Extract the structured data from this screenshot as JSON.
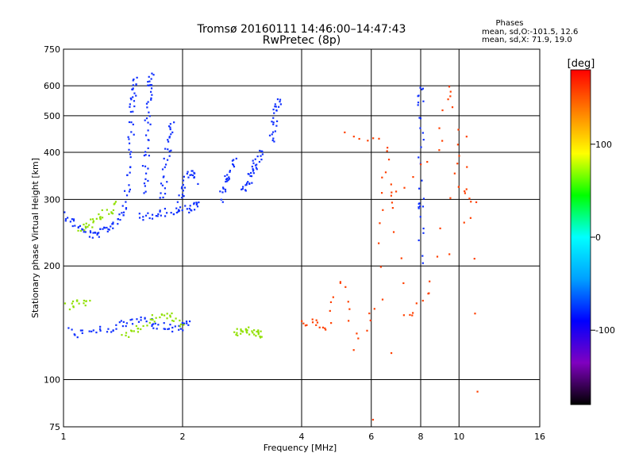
{
  "header": {
    "title_line1": "Tromsø 20160111 14:46:00–14:47:43",
    "title_line2": "RwPretec (8p)"
  },
  "stats": {
    "heading": "Phases",
    "line1": "mean, sd,O:-101.5, 12.6",
    "line2": "mean, sd,X:  71.9, 19.0"
  },
  "chart_data": {
    "type": "scatter",
    "xlabel": "Frequency [MHz]",
    "ylabel": "Stationary phase Virtual Height [km]",
    "xscale": "log",
    "yscale": "log",
    "xlim": [
      1,
      16
    ],
    "ylim": [
      75,
      750
    ],
    "xticks": [
      1,
      2,
      4,
      6,
      8,
      10,
      16
    ],
    "xtick_labels": [
      "1",
      "2",
      "4",
      "6",
      "8",
      "10",
      "16"
    ],
    "yticks": [
      75,
      100,
      200,
      300,
      400,
      500,
      600,
      750
    ],
    "ytick_labels": [
      "75",
      "100",
      "200",
      "300",
      "400",
      "500",
      "600",
      "750"
    ],
    "grid": true,
    "grid_x": [
      1,
      2,
      4,
      6,
      8,
      10,
      16
    ],
    "grid_y": [
      100,
      200,
      300,
      400,
      500,
      600
    ],
    "colorbar": {
      "label": "[deg]",
      "min": -180,
      "max": 180,
      "ticks": [
        100,
        0,
        -100
      ],
      "tick_labels": [
        "100",
        "0",
        "-100"
      ],
      "colors": [
        "#000000",
        "#8000c0",
        "#0000ff",
        "#00a0ff",
        "#00ffff",
        "#00ff00",
        "#ffff00",
        "#ff8000",
        "#ff0000"
      ]
    },
    "series": [
      {
        "color_class": "O-mode (blue, ~-100 deg)",
        "color": "#1030ff",
        "traces": [
          {
            "x": [
              1.0,
              1.05,
              1.1,
              1.15,
              1.2,
              1.25,
              1.3,
              1.35,
              1.4,
              1.45
            ],
            "y": [
              275,
              262,
              252,
              245,
              240,
              246,
              252,
              260,
              275,
              290
            ]
          },
          {
            "x": [
              1.45,
              1.46,
              1.47,
              1.48,
              1.49,
              1.5,
              1.51,
              1.52
            ],
            "y": [
              300,
              340,
              390,
              450,
              510,
              560,
              600,
              620
            ]
          },
          {
            "x": [
              1.6,
              1.61,
              1.62,
              1.63,
              1.64,
              1.65,
              1.66,
              1.67
            ],
            "y": [
              310,
              350,
              400,
              460,
              520,
              570,
              610,
              640
            ]
          },
          {
            "x": [
              1.55,
              1.65,
              1.75,
              1.85,
              1.95,
              2.05,
              2.15,
              2.2
            ],
            "y": [
              270,
              272,
              275,
              278,
              280,
              283,
              287,
              290
            ]
          },
          {
            "x": [
              1.78,
              1.8,
              1.82,
              1.84,
              1.86,
              1.88
            ],
            "y": [
              300,
              330,
              370,
              410,
              450,
              480
            ]
          },
          {
            "x": [
              1.95,
              2.0,
              2.05,
              2.1,
              2.15
            ],
            "y": [
              300,
              320,
              340,
              360,
              330
            ]
          },
          {
            "x": [
              2.5,
              2.55,
              2.6,
              2.65,
              2.7
            ],
            "y": [
              300,
              320,
              340,
              360,
              380
            ]
          },
          {
            "x": [
              2.85,
              2.9,
              2.95,
              3.0,
              3.05,
              3.1,
              3.15
            ],
            "y": [
              320,
              330,
              340,
              355,
              370,
              390,
              400
            ]
          },
          {
            "x": [
              3.35,
              3.38,
              3.42,
              3.46,
              3.5
            ],
            "y": [
              430,
              460,
              500,
              530,
              550
            ]
          },
          {
            "x": [
              1.0,
              1.1,
              1.2,
              1.3,
              1.4,
              1.5,
              1.6,
              1.7,
              1.8,
              1.9,
              2.0,
              2.1
            ],
            "y": [
              135,
              132,
              134,
              136,
              140,
              142,
              145,
              140,
              138,
              136,
              138,
              140
            ]
          },
          {
            "x": [
              8.0,
              8.0,
              8.0,
              8.0,
              8.0,
              8.0
            ],
            "y": [
              600,
              540,
              430,
              300,
              280,
              205
            ]
          }
        ]
      },
      {
        "color_class": "X-mode (green/yellow, ~70 deg)",
        "color": "#90e000",
        "traces": [
          {
            "x": [
              1.1,
              1.15,
              1.2,
              1.25,
              1.3,
              1.35
            ],
            "y": [
              250,
              255,
              262,
              270,
              280,
              290
            ]
          },
          {
            "x": [
              1.4,
              1.5,
              1.6,
              1.7,
              1.8,
              1.9,
              2.0
            ],
            "y": [
              130,
              135,
              140,
              145,
              150,
              145,
              140
            ]
          },
          {
            "x": [
              2.7,
              2.8,
              2.9,
              3.0,
              3.1,
              3.2
            ],
            "y": [
              133,
              134,
              135,
              134,
              133,
              132
            ]
          },
          {
            "x": [
              1.0,
              1.05,
              1.1,
              1.15
            ],
            "y": [
              155,
              158,
              160,
              162
            ]
          }
        ]
      },
      {
        "color_class": "scattered (mixed phase)",
        "color": "#ff4000",
        "traces": [
          {
            "x": [
              4.0,
              4.3,
              4.6,
              5.0,
              5.5,
              6.3,
              6.5,
              7.3,
              8.5,
              10.3,
              11.0
            ],
            "y": [
              140,
              142,
              135,
              185,
              120,
              165,
              345,
              145,
              170,
              430,
              95
            ]
          },
          {
            "x": [
              5.2,
              6.5,
              6.7,
              8.8,
              9.6,
              10.0,
              11.0,
              6.0
            ],
            "y": [
              450,
              420,
              290,
              400,
              610,
              325,
              290,
              80
            ]
          }
        ]
      }
    ]
  }
}
